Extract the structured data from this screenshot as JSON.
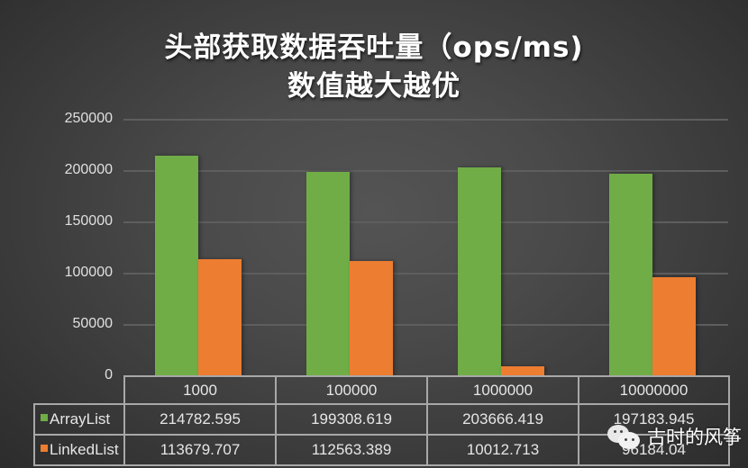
{
  "title": {
    "line1": "头部获取数据吞吐量（ops/ms)",
    "line2": "数值越大越优"
  },
  "colors": {
    "arraylist": "#70ad47",
    "linkedlist": "#ed7d31",
    "background": "#4a4a4a"
  },
  "y_axis": {
    "ticks": [
      "250000",
      "200000",
      "150000",
      "100000",
      "50000",
      "0"
    ]
  },
  "table": {
    "headers": [
      "1000",
      "100000",
      "1000000",
      "10000000"
    ],
    "rows": [
      {
        "label": "ArrayList",
        "values": [
          "214782.595",
          "199308.619",
          "203666.419",
          "197183.945"
        ]
      },
      {
        "label": "LinkedList",
        "values": [
          "113679.707",
          "112563.389",
          "10012.713",
          "96184.04"
        ]
      }
    ]
  },
  "watermark": {
    "icon": "wechat-icon",
    "text": "古时的风筝"
  },
  "chart_data": {
    "type": "bar",
    "title": "头部获取数据吞吐量（ops/ms) 数值越大越优",
    "xlabel": "",
    "ylabel": "",
    "categories": [
      "1000",
      "100000",
      "1000000",
      "10000000"
    ],
    "series": [
      {
        "name": "ArrayList",
        "color": "#70ad47",
        "values": [
          214782.595,
          199308.619,
          203666.419,
          197183.945
        ]
      },
      {
        "name": "LinkedList",
        "color": "#ed7d31",
        "values": [
          113679.707,
          112563.389,
          10012.713,
          96184.04
        ]
      }
    ],
    "ylim": [
      0,
      250000
    ],
    "yticks": [
      0,
      50000,
      100000,
      150000,
      200000,
      250000
    ],
    "grid": true,
    "legend": "data-table"
  }
}
